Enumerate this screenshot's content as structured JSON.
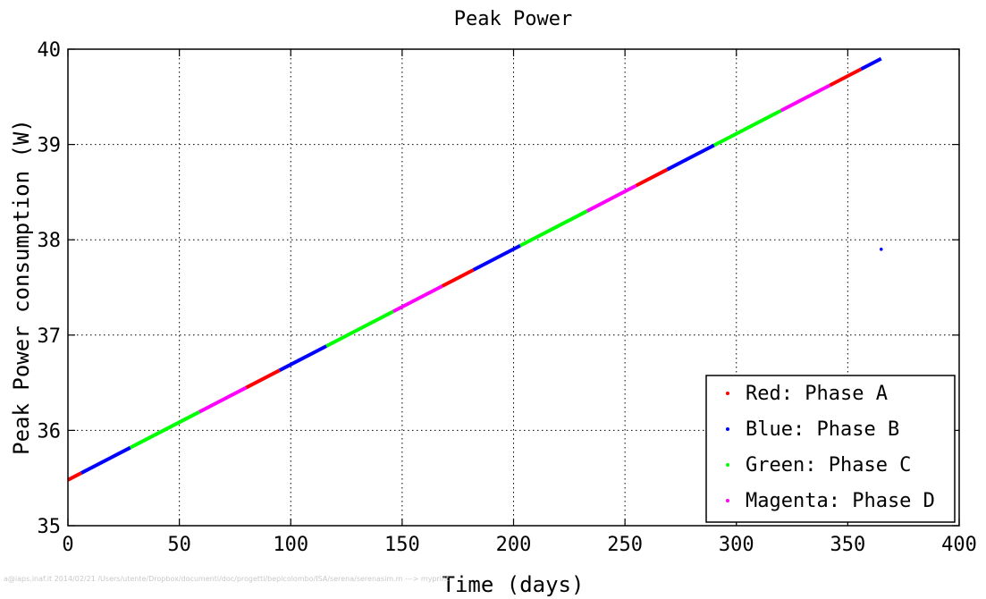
{
  "chart_data": {
    "type": "scatter",
    "title": "Peak Power",
    "xlabel": "Time (days)",
    "ylabel": "Peak Power consumption (W)",
    "xlim": [
      0,
      400
    ],
    "ylim": [
      35,
      40
    ],
    "xticks": [
      0,
      50,
      100,
      150,
      200,
      250,
      300,
      350,
      400
    ],
    "yticks": [
      35,
      36,
      37,
      38,
      39,
      40
    ],
    "grid": true,
    "legend_position": "bottom-right",
    "trend": {
      "x_start": 0,
      "y_start": 35.48,
      "x_end": 365,
      "y_end": 39.9
    },
    "segments": [
      {
        "series": "Red: Phase A",
        "x_start": 0,
        "x_end": 6
      },
      {
        "series": "Blue: Phase B",
        "x_start": 6,
        "x_end": 28
      },
      {
        "series": "Green: Phase C",
        "x_start": 28,
        "x_end": 59
      },
      {
        "series": "Magenta: Phase D",
        "x_start": 59,
        "x_end": 80
      },
      {
        "series": "Red: Phase A",
        "x_start": 80,
        "x_end": 95
      },
      {
        "series": "Blue: Phase B",
        "x_start": 95,
        "x_end": 116
      },
      {
        "series": "Green: Phase C",
        "x_start": 116,
        "x_end": 146
      },
      {
        "series": "Magenta: Phase D",
        "x_start": 146,
        "x_end": 168
      },
      {
        "series": "Red: Phase A",
        "x_start": 168,
        "x_end": 182
      },
      {
        "series": "Blue: Phase B",
        "x_start": 182,
        "x_end": 203
      },
      {
        "series": "Green: Phase C",
        "x_start": 203,
        "x_end": 233
      },
      {
        "series": "Magenta: Phase D",
        "x_start": 233,
        "x_end": 255
      },
      {
        "series": "Red: Phase A",
        "x_start": 255,
        "x_end": 269
      },
      {
        "series": "Blue: Phase B",
        "x_start": 269,
        "x_end": 290
      },
      {
        "series": "Green: Phase C",
        "x_start": 290,
        "x_end": 320
      },
      {
        "series": "Magenta: Phase D",
        "x_start": 320,
        "x_end": 342
      },
      {
        "series": "Red: Phase A",
        "x_start": 342,
        "x_end": 356
      },
      {
        "series": "Blue: Phase B",
        "x_start": 356,
        "x_end": 365
      }
    ],
    "outliers": [
      {
        "series": "Blue: Phase B",
        "x": 365,
        "y": 37.9
      }
    ],
    "series": [
      {
        "name": "Red: Phase A",
        "color": "#ff0000"
      },
      {
        "name": "Blue: Phase B",
        "color": "#0000ff"
      },
      {
        "name": "Green: Phase C",
        "color": "#00ff00"
      },
      {
        "name": "Magenta: Phase D",
        "color": "#ff00ff"
      }
    ]
  },
  "footer": {
    "text": "a@iaps.inaf.it 2014/02/21 /Users/utente/Dropbox/documenti/doc/progetti/bepicolombo/ISA/serena/serenasim.m ---> myprint"
  }
}
